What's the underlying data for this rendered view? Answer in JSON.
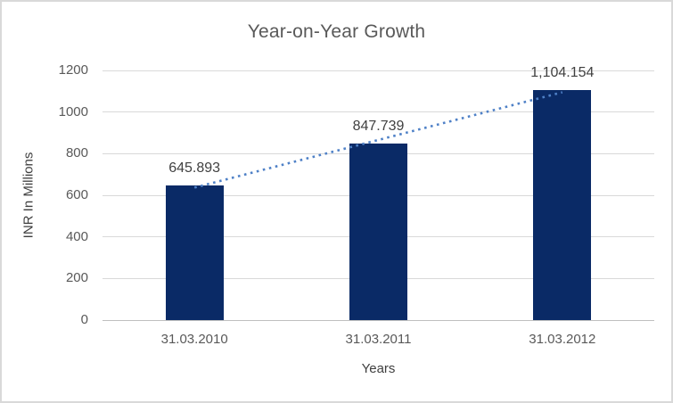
{
  "chart_data": {
    "type": "bar",
    "title": "Year-on-Year Growth",
    "categories": [
      "31.03.2010",
      "31.03.2011",
      "31.03.2012"
    ],
    "values": [
      645.893,
      847.739,
      1104.154
    ],
    "data_labels": [
      "645.893",
      "847.739",
      "1,104.154"
    ],
    "xlabel": "Years",
    "ylabel": "INR In Millions",
    "ylim": [
      0,
      1200
    ],
    "ytick_step": 200,
    "ytick_labels": [
      "0",
      "200",
      "400",
      "600",
      "800",
      "1000",
      "1200"
    ],
    "grid": true,
    "legend": "none",
    "trendline": "linear-dotted"
  },
  "colors": {
    "bar": "#0a2a66",
    "trendline": "#4f81c7",
    "gridline": "#d9d9d9",
    "axis_line": "#bfbfbf",
    "title_text": "#595959",
    "tick_text": "#595959",
    "data_label_text": "#404040",
    "chart_border": "#d9d9d9",
    "background": "#ffffff"
  }
}
